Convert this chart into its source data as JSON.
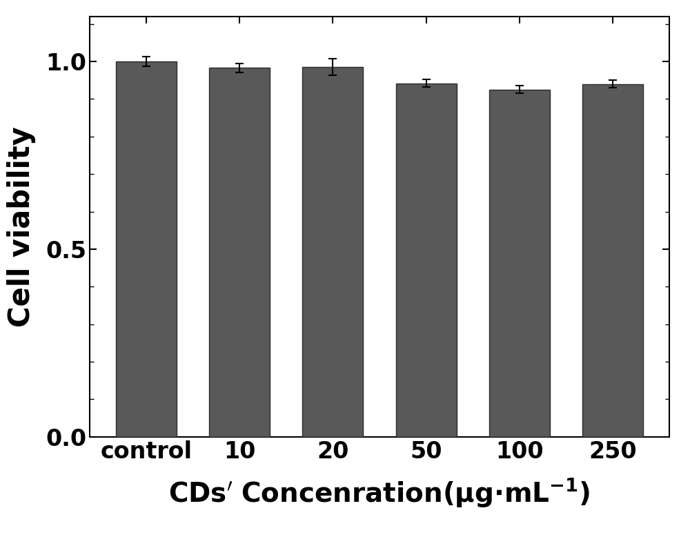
{
  "categories": [
    "control",
    "10",
    "20",
    "50",
    "100",
    "250"
  ],
  "values": [
    1.0,
    0.983,
    0.985,
    0.942,
    0.925,
    0.94
  ],
  "errors": [
    0.012,
    0.012,
    0.022,
    0.01,
    0.01,
    0.01
  ],
  "bar_color": "#595959",
  "bar_width": 0.65,
  "ylabel": "Cell viability",
  "ylim": [
    0.0,
    1.12
  ],
  "yticks": [
    0.0,
    0.5,
    1.0
  ],
  "background_color": "#ffffff",
  "ylabel_fontsize": 30,
  "xlabel_fontsize": 28,
  "tick_fontsize": 24,
  "bar_edge_color": "#2b2b2b",
  "bar_linewidth": 1.0,
  "capsize": 4,
  "elinewidth": 1.5,
  "ecapthickness": 1.5
}
